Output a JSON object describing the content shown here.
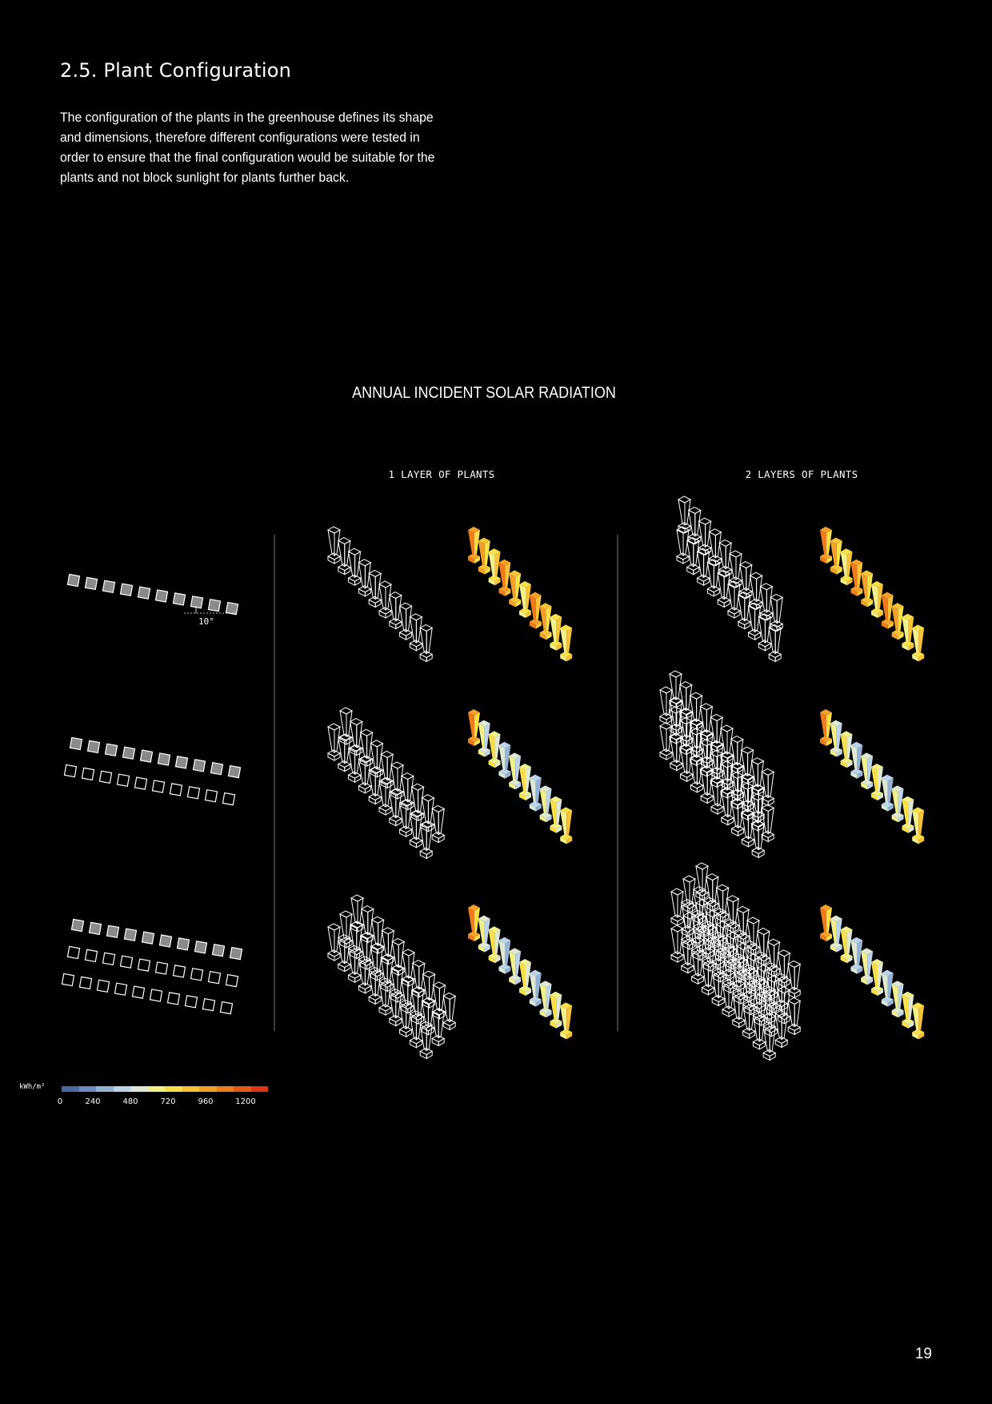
{
  "section_title": "2.5. Plant Configuration",
  "intro_text": "The configuration of the plants in the greenhouse defines its shape and dimensions, therefore different configurations were tested in order to ensure that the final configuration would be suitable for the plants and not block sunlight for plants further back.",
  "figure": {
    "title": "ANNUAL INCIDENT SOLAR RADIATION",
    "columns": [
      "1 LAYER OF PLANTS",
      "2 LAYERS OF PLANTS"
    ],
    "angle_label": "10°",
    "rows": [
      {
        "plan_rows": 1,
        "pots_per_row": 10
      },
      {
        "plan_rows": 2,
        "pots_per_row": 10
      },
      {
        "plan_rows": 3,
        "pots_per_row": 10
      }
    ]
  },
  "legend": {
    "unit": "kWh/m²",
    "ticks": [
      "0",
      "240",
      "480",
      "720",
      "960",
      "1200"
    ],
    "colors": [
      "#4a6aa0",
      "#6a8cc0",
      "#93b2d6",
      "#bcd3ea",
      "#dfe8d4",
      "#f2f08a",
      "#f7e04a",
      "#f6c23a",
      "#f2a02a",
      "#ee7c1c",
      "#e65a18",
      "#df3414"
    ]
  },
  "page_number": "19",
  "colors": {
    "background": "#000000",
    "text": "#ffffff",
    "divider": "#7a7a7a"
  }
}
